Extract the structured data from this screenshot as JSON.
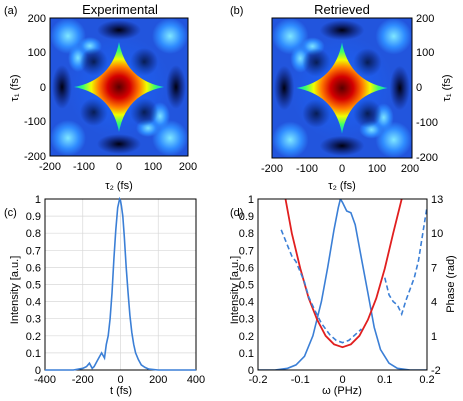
{
  "figure": {
    "panels": {
      "a": {
        "letter": "(a)",
        "title": "Experimental"
      },
      "b": {
        "letter": "(b)",
        "title": "Retrieved"
      },
      "c": {
        "letter": "(c)"
      },
      "d": {
        "letter": "(d)"
      }
    },
    "labels": {
      "a_xlabel": "τ₂ (fs)",
      "a_ylabel": "τ₁ (fs)",
      "b_xlabel": "τ₂ (fs)",
      "b_ylabel": "τ₁ (fs)",
      "c_xlabel": "t (fs)",
      "c_ylabel": "Intensity [a.u.]",
      "d_xlabel": "ω (PHz)",
      "d_ylabel_left": "Intensity [a.u.]",
      "d_ylabel_right": "Phase (rad)"
    },
    "colors": {
      "intensity": "#3b7fd6",
      "phase_solid": "#e11f1f",
      "phase_dashed": "#3b7fd6",
      "map_low": "#000033",
      "map_high": "#cc0000"
    }
  },
  "chart_data": [
    {
      "id": "a",
      "type": "heatmap",
      "title": "Experimental",
      "xlabel": "τ₂ (fs)",
      "ylabel": "τ₁ (fs)",
      "xlim": [
        -200,
        200
      ],
      "ylim": [
        -200,
        200
      ],
      "xticks": [
        "-200",
        "-100",
        "0",
        "100",
        "200"
      ],
      "yticks": [
        "200",
        "100",
        "0",
        "-100",
        "-200"
      ],
      "description_values": {
        "peak_at": [
          0,
          0
        ],
        "diamond_halfwidth": 60
      }
    },
    {
      "id": "b",
      "type": "heatmap",
      "title": "Retrieved",
      "xlabel": "τ₂ (fs)",
      "ylabel": "τ₁ (fs)",
      "xlim": [
        -200,
        200
      ],
      "ylim": [
        -200,
        200
      ],
      "xticks": [
        "-200",
        "-100",
        "0",
        "100",
        "200"
      ],
      "yticks": [
        "200",
        "100",
        "0",
        "-100",
        "-200"
      ],
      "description_values": {
        "peak_at": [
          0,
          0
        ],
        "diamond_halfwidth": 60
      }
    },
    {
      "id": "c",
      "type": "line",
      "xlabel": "t (fs)",
      "ylabel": "Intensity [a.u.]",
      "xlim": [
        -400,
        400
      ],
      "ylim": [
        0,
        1
      ],
      "grid": true,
      "xticks": [
        "-400",
        "-200",
        "0",
        "200",
        "400"
      ],
      "yticks": [
        "0",
        "0.1",
        "0.2",
        "0.3",
        "0.4",
        "0.5",
        "0.6",
        "0.7",
        "0.8",
        "0.9",
        "1"
      ],
      "series": [
        {
          "x": [
            -400,
            -300,
            -250,
            -200,
            -180,
            -165,
            -150,
            -140,
            -120,
            -100,
            -85,
            -75,
            -65,
            -55,
            -45,
            -35,
            -25,
            -15,
            -5,
            0,
            5,
            12,
            20,
            30,
            40,
            50,
            60,
            70,
            80,
            95,
            110,
            130,
            150,
            200,
            300,
            400
          ],
          "y": [
            0.0,
            0.0,
            0.0,
            0.01,
            0.02,
            0.04,
            0.01,
            0.02,
            0.06,
            0.1,
            0.07,
            0.15,
            0.2,
            0.3,
            0.45,
            0.65,
            0.82,
            0.95,
            1.0,
            0.99,
            0.96,
            0.9,
            0.78,
            0.6,
            0.45,
            0.32,
            0.22,
            0.15,
            0.1,
            0.06,
            0.03,
            0.015,
            0.005,
            0.0,
            0.0,
            0.0
          ]
        }
      ]
    },
    {
      "id": "d",
      "type": "line",
      "xlabel": "ω (PHz)",
      "ylabel": "Intensity [a.u.]",
      "y2label": "Phase (rad)",
      "xlim": [
        -0.2,
        0.2
      ],
      "ylim": [
        0,
        1
      ],
      "y2lim": [
        -2,
        13
      ],
      "xticks": [
        "-0.2",
        "-0.1",
        "0",
        "0.1",
        "0.2"
      ],
      "yticks": [
        "0",
        "0.1",
        "0.2",
        "0.3",
        "0.4",
        "0.5",
        "0.6",
        "0.7",
        "0.8",
        "0.9",
        "1"
      ],
      "y2ticks": [
        "-2",
        "1",
        "4",
        "7",
        "10",
        "13"
      ],
      "series": [
        {
          "axis": "left",
          "style": "solid-blue",
          "x": [
            -0.2,
            -0.16,
            -0.13,
            -0.11,
            -0.09,
            -0.07,
            -0.05,
            -0.035,
            -0.02,
            -0.01,
            -0.005,
            0.0,
            0.01,
            0.02,
            0.03,
            0.045,
            0.06,
            0.075,
            0.09,
            0.11,
            0.13,
            0.16,
            0.2
          ],
          "y": [
            0.0,
            0.0,
            0.01,
            0.03,
            0.08,
            0.2,
            0.4,
            0.6,
            0.82,
            0.95,
            1.0,
            0.98,
            0.93,
            0.92,
            0.85,
            0.65,
            0.45,
            0.25,
            0.12,
            0.04,
            0.01,
            0.0,
            0.0
          ]
        },
        {
          "axis": "right",
          "style": "solid-red",
          "x": [
            -0.135,
            -0.12,
            -0.1,
            -0.08,
            -0.06,
            -0.04,
            -0.02,
            0.0,
            0.02,
            0.04,
            0.06,
            0.08,
            0.1,
            0.12,
            0.14
          ],
          "y": [
            13.0,
            10.0,
            6.9,
            4.3,
            2.4,
            1.0,
            0.25,
            0.0,
            0.25,
            1.0,
            2.4,
            4.3,
            6.9,
            10.0,
            13.0
          ]
        },
        {
          "axis": "right",
          "style": "dashed-blue",
          "x": [
            -0.145,
            -0.13,
            -0.12,
            -0.11,
            -0.1,
            -0.09,
            -0.08,
            -0.065,
            -0.05,
            -0.03,
            -0.015,
            0.0,
            0.015,
            0.03,
            0.045
          ],
          "y": [
            10.3,
            8.9,
            8.0,
            7.5,
            6.6,
            5.7,
            4.4,
            3.2,
            2.1,
            1.1,
            0.6,
            0.4,
            0.6,
            1.1,
            1.6
          ]
        },
        {
          "axis": "right",
          "style": "dashed-blue",
          "x": [
            0.1,
            0.11,
            0.12,
            0.13,
            0.14,
            0.15,
            0.16,
            0.17,
            0.18,
            0.19,
            0.2
          ],
          "y": [
            6.1,
            4.6,
            4.0,
            3.7,
            2.9,
            4.1,
            5.1,
            6.1,
            7.6,
            10.0,
            12.3
          ]
        }
      ]
    }
  ]
}
